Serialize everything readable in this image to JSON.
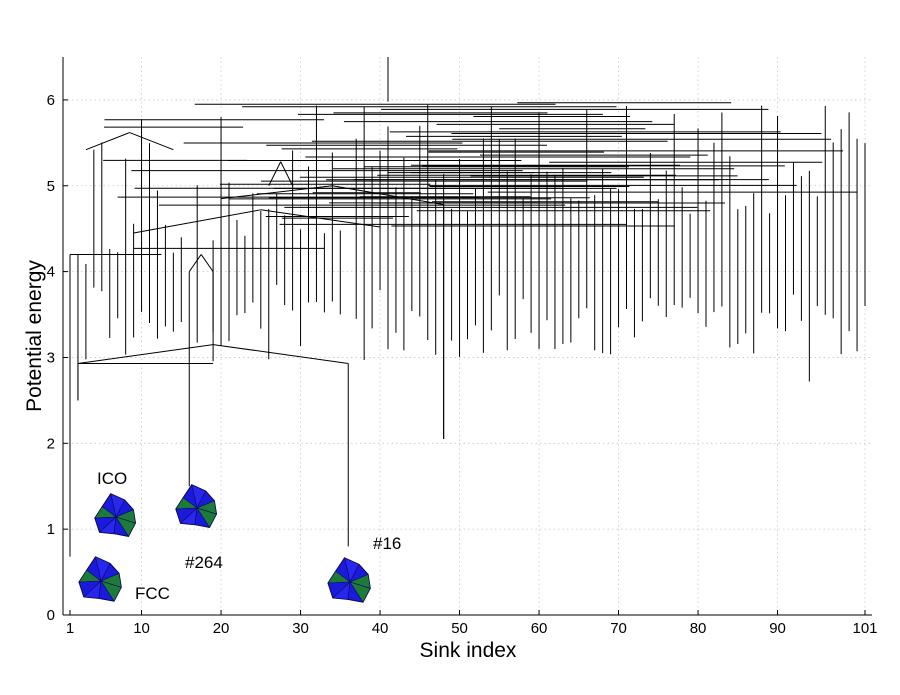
{
  "chart_data": {
    "type": "disconnectivity-graph",
    "xlabel": "Sink index",
    "ylabel": "Potential energy",
    "xlim": [
      1,
      101
    ],
    "ylim": [
      0,
      6.5
    ],
    "xticks": [
      1,
      10,
      20,
      30,
      40,
      50,
      60,
      70,
      80,
      90,
      101
    ],
    "yticks": [
      0,
      1,
      2,
      3,
      4,
      5,
      6
    ],
    "grid": true,
    "annotations": [
      {
        "label": "ICO",
        "sink": 1,
        "energy": 0.7
      },
      {
        "label": "#264",
        "sink": 16,
        "energy": 1.55
      },
      {
        "label": "#16",
        "sink": 36,
        "energy": 0.8
      },
      {
        "label": "FCC",
        "sink": 1,
        "energy": 0.0
      }
    ],
    "featured_merges": [
      {
        "x_from": 1,
        "x_to": 12.5,
        "energy": 4.2
      },
      {
        "x_from": 2,
        "x_to": 36,
        "energy": 2.93
      },
      {
        "x_from": 10,
        "x_to": 33,
        "energy": 4.27
      },
      {
        "x_from": 16,
        "x_to": 18,
        "energy": 4.0
      },
      {
        "x_from": 9,
        "x_to": 38,
        "energy": 4.72
      },
      {
        "x_from": 2.5,
        "x_to": 14,
        "energy": 5.42
      }
    ],
    "leaf_minima": [
      {
        "sink": 1,
        "energy": 0.68
      },
      {
        "sink": 2,
        "energy": 2.5
      },
      {
        "sink": 16,
        "energy": 1.5
      },
      {
        "sink": 36,
        "energy": 0.8
      },
      {
        "sink": 48,
        "energy": 2.05
      },
      {
        "sink": 94,
        "energy": 2.72
      },
      {
        "sink": 101,
        "energy": 3.6
      }
    ]
  },
  "molecules": [
    {
      "name": "ico-cluster-image",
      "color_main": "#1a1adc",
      "color_accent": "#1e8c1e"
    },
    {
      "name": "cluster-264-image",
      "color_main": "#1a1adc",
      "color_accent": "#1e8c1e"
    },
    {
      "name": "cluster-16-image",
      "color_main": "#1a1adc",
      "color_accent": "#1e8c1e"
    },
    {
      "name": "fcc-cluster-image",
      "color_main": "#1a1adc",
      "color_accent": "#1e8c1e"
    }
  ]
}
